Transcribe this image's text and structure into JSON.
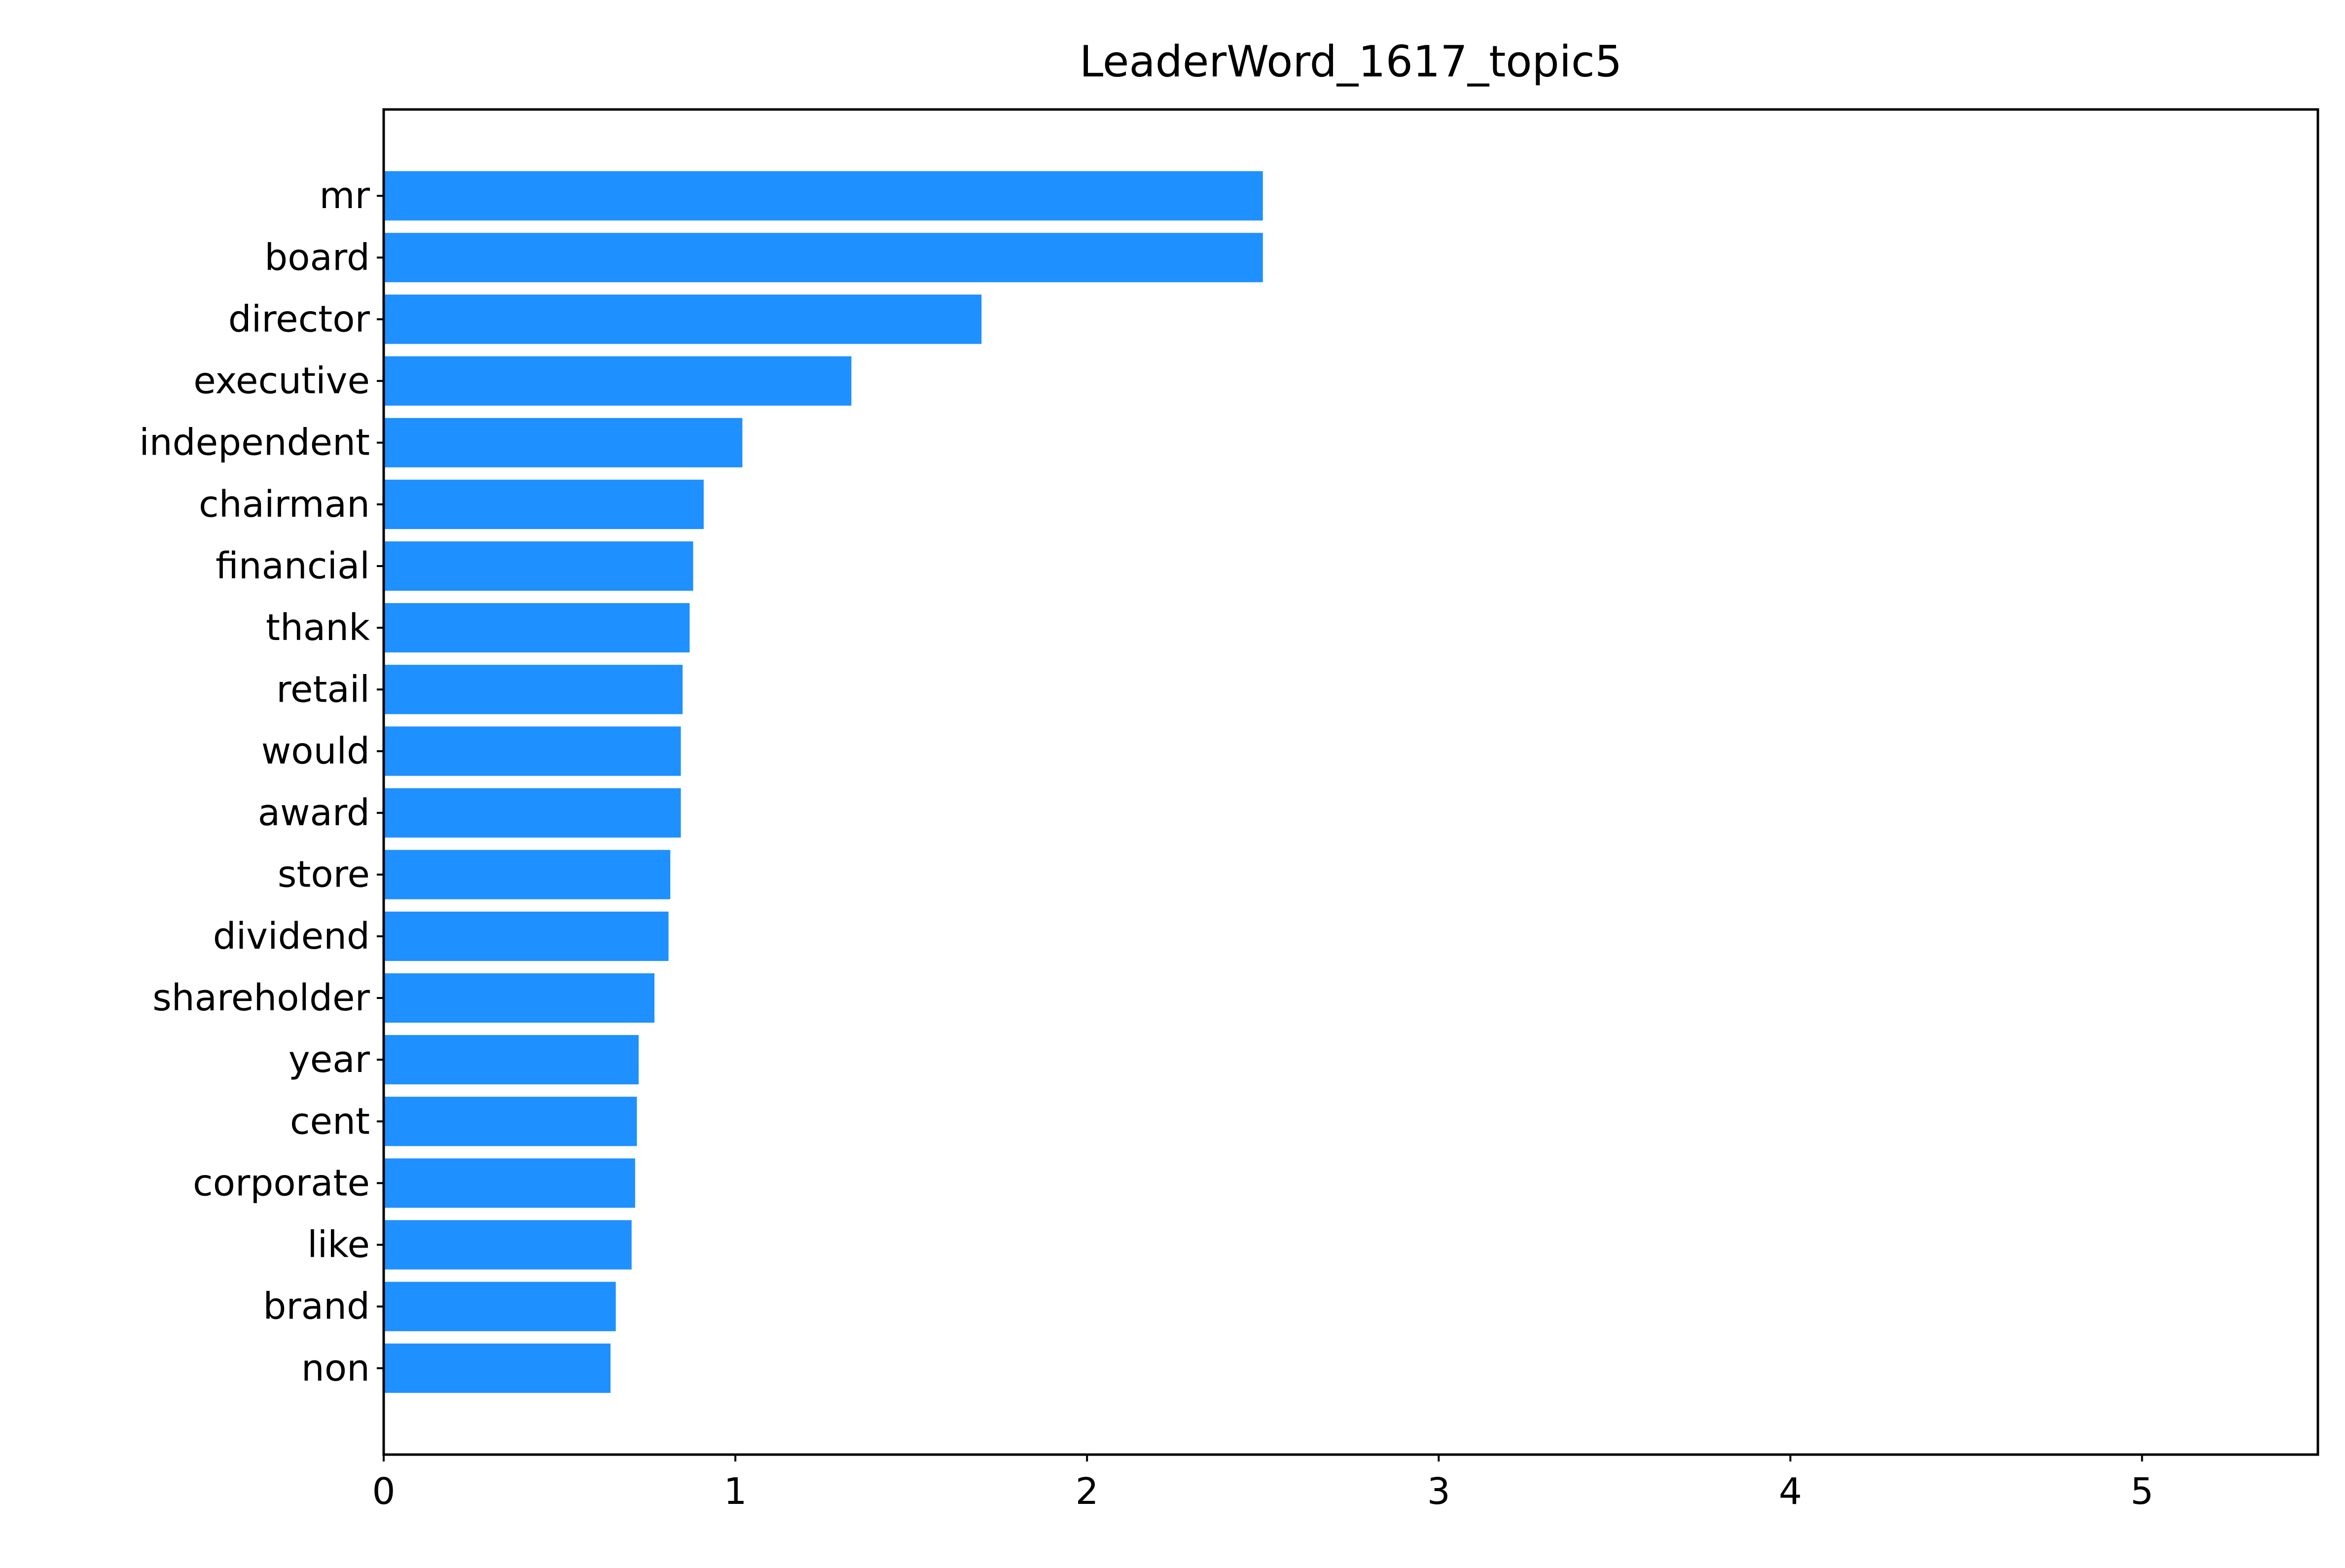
{
  "chart_data": {
    "type": "bar",
    "orientation": "horizontal",
    "title": "LeaderWord_1617_topic5",
    "xlabel": "",
    "ylabel": "",
    "categories": [
      "mr",
      "board",
      "director",
      "executive",
      "independent",
      "chairman",
      "financial",
      "thank",
      "retail",
      "would",
      "award",
      "store",
      "dividend",
      "shareholder",
      "year",
      "cent",
      "corporate",
      "like",
      "brand",
      "non"
    ],
    "values": [
      2.5,
      2.5,
      1.7,
      1.33,
      1.02,
      0.91,
      0.88,
      0.87,
      0.85,
      0.845,
      0.845,
      0.815,
      0.81,
      0.77,
      0.725,
      0.72,
      0.715,
      0.705,
      0.66,
      0.645
    ],
    "xlim": [
      0,
      5.5
    ],
    "xticks": [
      0,
      1,
      2,
      3,
      4,
      5
    ],
    "bar_color": "#1e90ff",
    "grid": false,
    "legend": "none"
  }
}
